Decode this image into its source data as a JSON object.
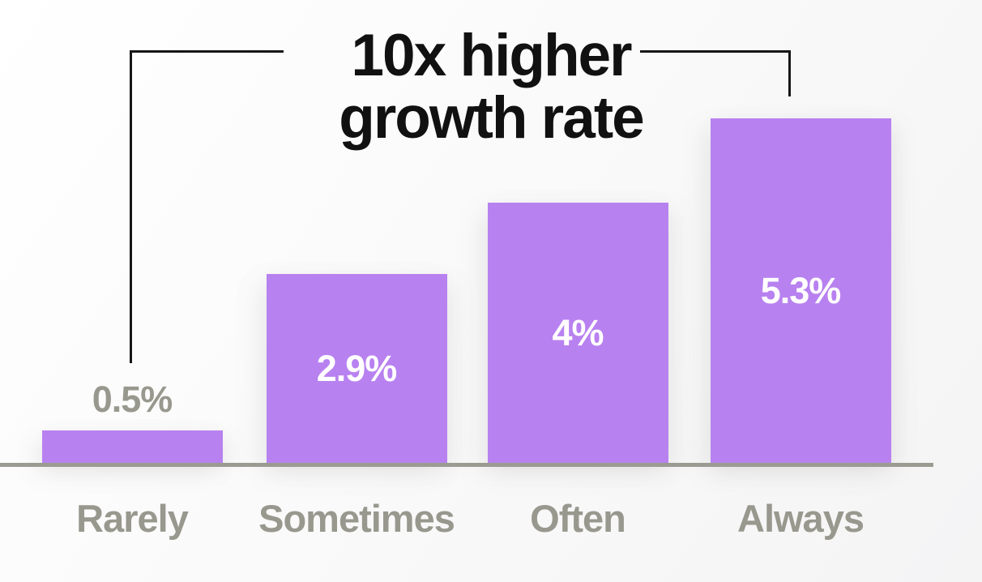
{
  "chart_data": {
    "type": "bar",
    "title": "10x higher growth rate",
    "title_lines": [
      "10x higher",
      "growth rate"
    ],
    "categories": [
      "Rarely",
      "Sometimes",
      "Often",
      "Always"
    ],
    "values": [
      0.5,
      2.9,
      4.0,
      5.3
    ],
    "data_labels": [
      "0.5%",
      "2.9%",
      "4%",
      "5.3%"
    ],
    "unit": "%",
    "ylim": [
      0,
      5.5
    ],
    "grid": false,
    "legend": null,
    "annotation": {
      "text": "10x higher growth rate",
      "connects": [
        "Rarely",
        "Always"
      ]
    },
    "colors": {
      "bar": "#b881f0",
      "label_inside": "#ffffff",
      "label_outside": "#98988e",
      "category": "#98988e",
      "axis_line": "#9b9b91",
      "title": "#111111",
      "bracket": "#161616",
      "background_from": "#ffffff",
      "background_to": "#f4f4f5"
    }
  }
}
